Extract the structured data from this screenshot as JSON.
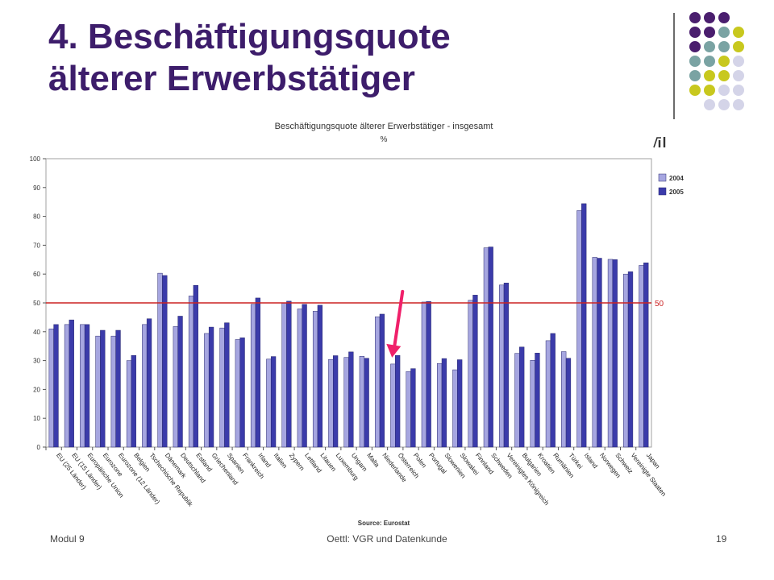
{
  "slide": {
    "title_line1": "4. Beschäftigungsquote",
    "title_line2": "älterer Erwerbstätiger",
    "footer_left": "Modul 9",
    "footer_center": "Oettl: VGR und Datenkunde",
    "footer_right": "19"
  },
  "colors": {
    "title": "#3d1d6b",
    "dot_purple": "#4a1e6e",
    "dot_teal": "#7aa3a3",
    "dot_yellow": "#c8c81e",
    "dot_lavender": "#d4d4e8",
    "bar_2004": "#a6a6e0",
    "bar_2005": "#3b3baa",
    "target_line": "#cc2222",
    "arrow": "#f0206a"
  },
  "chart_data": {
    "type": "bar",
    "title": "Beschäftigungsquote älterer Erwerbstätiger - insgesamt",
    "subtitle": "%",
    "source": "Source: Eurostat",
    "ylim": [
      0,
      100
    ],
    "yticks": [
      "0",
      "10",
      "20",
      "30",
      "40",
      "50",
      "60",
      "70",
      "80",
      "90",
      "100"
    ],
    "grid": false,
    "legend_position": "right",
    "reference_line": {
      "value": 50,
      "label": "50"
    },
    "categories": [
      "EU (25 Länder)",
      "EU (15 Länder)",
      "Europäische Union",
      "Eurozone",
      "Eurozone (12 Länder)",
      "Belgien",
      "Tschechische Republik",
      "Dänemark",
      "Deutschland",
      "Estland",
      "Griechenland",
      "Spanien",
      "Frankreich",
      "Irland",
      "Italien",
      "Zypern",
      "Lettland",
      "Litauen",
      "Luxemburg",
      "Ungarn",
      "Malta",
      "Niederlande",
      "Österreich",
      "Polen",
      "Portugal",
      "Slowenien",
      "Slowakei",
      "Finnland",
      "Schweden",
      "Vereinigtes Königreich",
      "Bulgarien",
      "Kroatien",
      "Rumänien",
      "Türkei",
      "Island",
      "Norwegen",
      "Schweiz",
      "Vereinigte Staaten",
      "Japan"
    ],
    "series": [
      {
        "name": "2004",
        "values": [
          41,
          42.5,
          42.5,
          38.5,
          38.5,
          30,
          42.5,
          60.3,
          41.8,
          52.4,
          39.4,
          41.3,
          37.3,
          49.5,
          30.5,
          49.9,
          47.9,
          47.1,
          30.4,
          31.1,
          31.5,
          45.2,
          28.8,
          26.2,
          50.3,
          29,
          26.8,
          50.9,
          69.1,
          56.2,
          32.5,
          30.1,
          36.9,
          33.1,
          82,
          65.8,
          65.1,
          60,
          63
        ]
      },
      {
        "name": "2005",
        "values": [
          42.5,
          44.1,
          42.5,
          40.5,
          40.5,
          31.8,
          44.5,
          59.5,
          45.4,
          56.1,
          41.6,
          43.1,
          37.9,
          51.7,
          31.4,
          50.6,
          49.5,
          49.2,
          31.7,
          33,
          30.8,
          46.1,
          31.8,
          27.2,
          50.5,
          30.7,
          30.3,
          52.7,
          69.4,
          56.9,
          34.7,
          32.6,
          39.4,
          30.8,
          84.4,
          65.5,
          65,
          60.8,
          63.9
        ]
      }
    ]
  }
}
